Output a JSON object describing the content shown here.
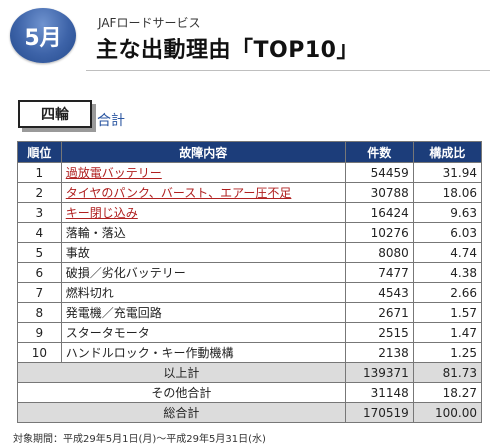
{
  "header": {
    "month": "5月",
    "brand": "JAFロードサービス",
    "title": "主な出動理由「TOP10」"
  },
  "category": {
    "label": "四輪",
    "subtotal_link": "合計"
  },
  "table": {
    "columns": [
      "順位",
      "故障内容",
      "件数",
      "構成比"
    ],
    "rows": [
      {
        "rank": "1",
        "cause": "過放電バッテリー",
        "count": "54459",
        "ratio": "31.94"
      },
      {
        "rank": "2",
        "cause": "タイヤのパンク、バースト、エアー圧不足",
        "count": "30788",
        "ratio": "18.06"
      },
      {
        "rank": "3",
        "cause": "キー閉じ込み",
        "count": "16424",
        "ratio": "9.63"
      },
      {
        "rank": "4",
        "cause": "落輪・落込",
        "count": "10276",
        "ratio": "6.03"
      },
      {
        "rank": "5",
        "cause": "事故",
        "count": "8080",
        "ratio": "4.74"
      },
      {
        "rank": "6",
        "cause": "破損／劣化バッテリー",
        "count": "7477",
        "ratio": "4.38"
      },
      {
        "rank": "7",
        "cause": "燃料切れ",
        "count": "4543",
        "ratio": "2.66"
      },
      {
        "rank": "8",
        "cause": "発電機／充電回路",
        "count": "2671",
        "ratio": "1.57"
      },
      {
        "rank": "9",
        "cause": "スタータモータ",
        "count": "2515",
        "ratio": "1.47"
      },
      {
        "rank": "10",
        "cause": "ハンドルロック・キー作動機構",
        "count": "2138",
        "ratio": "1.25"
      }
    ],
    "summary": [
      {
        "label": "以上計",
        "count": "139371",
        "ratio": "81.73"
      },
      {
        "label": "その他合計",
        "count": "31148",
        "ratio": "18.27"
      },
      {
        "label": "総合計",
        "count": "170519",
        "ratio": "100.00"
      }
    ]
  },
  "footnote": "対象期間：平成29年5月1日(月)〜平成29年5月31日(水)"
}
